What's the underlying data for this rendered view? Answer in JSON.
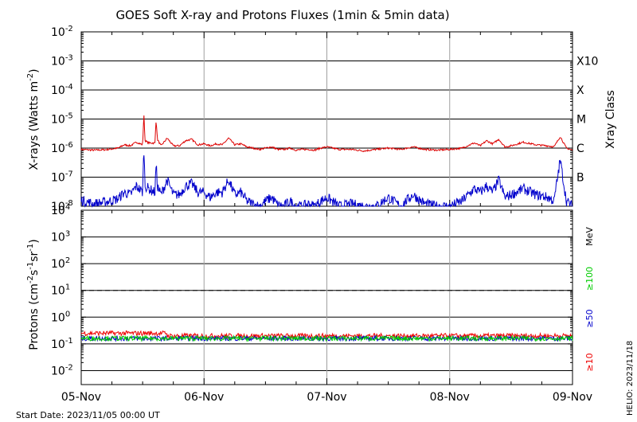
{
  "title": "GOES Soft X-ray and Protons Fluxes   (1min & 5min data)",
  "footer": {
    "start_date": "Start Date: 2023/11/05 00:00 UT",
    "helio": "HELIO: 2023/11/18"
  },
  "colors": {
    "long_xray": "#dd0000",
    "short_xray": "#0000cc",
    "p10": "#ee0000",
    "p50": "#0000cc",
    "p100": "#00cc00",
    "grid": "#000000",
    "day_lines": "#a0a0a0"
  },
  "chart_data": [
    {
      "type": "line",
      "name": "xray-panel",
      "ylabel": "X-rays (Watts m",
      "ylabel_sup": "-2",
      "ylabel_end": ")",
      "yscale": "log",
      "ylim": [
        1e-08,
        0.01
      ],
      "y_ticks": [
        {
          "base": "10",
          "exp": "-2"
        },
        {
          "base": "10",
          "exp": "-3"
        },
        {
          "base": "10",
          "exp": "-4"
        },
        {
          "base": "10",
          "exp": "-5"
        },
        {
          "base": "10",
          "exp": "-6"
        },
        {
          "base": "10",
          "exp": "-7"
        },
        {
          "base": "10",
          "exp": "-8"
        }
      ],
      "right_axis_label": "Xray Class",
      "classes": [
        "X10",
        "X",
        "M",
        "C",
        "B"
      ],
      "x_range_days": [
        "2023-11-05",
        "2023-11-09"
      ],
      "x_ticks": [
        "05-Nov",
        "06-Nov",
        "07-Nov",
        "08-Nov",
        "09-Nov"
      ],
      "series": [
        {
          "key": "long_xray",
          "x_days": [
            0,
            0.1,
            0.2,
            0.3,
            0.35,
            0.4,
            0.45,
            0.5,
            0.51,
            0.52,
            0.55,
            0.6,
            0.61,
            0.62,
            0.65,
            0.7,
            0.75,
            0.8,
            0.85,
            0.9,
            0.95,
            1.0,
            1.05,
            1.1,
            1.15,
            1.2,
            1.25,
            1.3,
            1.35,
            1.4,
            1.45,
            1.5,
            1.55,
            1.6,
            1.65,
            1.7,
            1.75,
            1.8,
            1.85,
            1.9,
            1.95,
            2.0,
            2.1,
            2.2,
            2.3,
            2.4,
            2.5,
            2.6,
            2.7,
            2.8,
            2.9,
            3.0,
            3.1,
            3.2,
            3.25,
            3.3,
            3.35,
            3.4,
            3.45,
            3.5,
            3.6,
            3.7,
            3.8,
            3.85,
            3.9,
            3.95,
            4.0
          ],
          "y_values": [
            9e-07,
            8.5e-07,
            8.8e-07,
            1e-06,
            1.3e-06,
            1.2e-06,
            1.6e-06,
            1.3e-06,
            1.6e-05,
            1.8e-06,
            1.5e-06,
            1.5e-06,
            1e-05,
            2e-06,
            1.2e-06,
            2.2e-06,
            1.2e-06,
            1.2e-06,
            1.8e-06,
            2e-06,
            1.3e-06,
            1.4e-06,
            1.2e-06,
            1.4e-06,
            1.3e-06,
            2.2e-06,
            1.3e-06,
            1.4e-06,
            1.1e-06,
            1e-06,
            9e-07,
            1e-06,
            1.1e-06,
            9e-07,
            9e-07,
            1e-06,
            8.5e-07,
            9e-07,
            9e-07,
            8.5e-07,
            1e-06,
            1.1e-06,
            9e-07,
            9e-07,
            8e-07,
            9e-07,
            1e-06,
            9e-07,
            1.1e-06,
            9e-07,
            8.5e-07,
            9e-07,
            1e-06,
            1.5e-06,
            1.2e-06,
            1.8e-06,
            1.4e-06,
            2e-06,
            1.1e-06,
            1.2e-06,
            1.6e-06,
            1.3e-06,
            1.2e-06,
            1.1e-06,
            2.5e-06,
            1e-06,
            8.5e-07
          ]
        },
        {
          "key": "short_xray",
          "x_days": [
            0,
            0.1,
            0.2,
            0.3,
            0.35,
            0.4,
            0.45,
            0.5,
            0.51,
            0.52,
            0.55,
            0.6,
            0.61,
            0.62,
            0.65,
            0.7,
            0.75,
            0.8,
            0.85,
            0.9,
            0.95,
            1.0,
            1.05,
            1.1,
            1.15,
            1.2,
            1.25,
            1.3,
            1.35,
            1.4,
            1.45,
            1.5,
            1.55,
            1.6,
            1.65,
            1.7,
            1.75,
            1.8,
            1.85,
            1.9,
            1.95,
            2.0,
            2.1,
            2.2,
            2.3,
            2.4,
            2.5,
            2.6,
            2.7,
            2.8,
            2.9,
            3.0,
            3.1,
            3.2,
            3.25,
            3.3,
            3.35,
            3.4,
            3.45,
            3.5,
            3.6,
            3.7,
            3.8,
            3.85,
            3.9,
            3.95,
            4.0
          ],
          "y_values": [
            1.6e-08,
            1.2e-08,
            1.4e-08,
            1.8e-08,
            3e-08,
            2.5e-08,
            5e-08,
            3e-08,
            1.2e-06,
            5e-08,
            4e-08,
            3e-08,
            3e-07,
            5e-08,
            2.5e-08,
            8e-08,
            2.5e-08,
            2.5e-08,
            5e-08,
            6e-08,
            3e-08,
            3e-08,
            2e-08,
            3e-08,
            3e-08,
            8e-08,
            2.5e-08,
            3e-08,
            1.5e-08,
            1.2e-08,
            1e-08,
            1.5e-08,
            2e-08,
            1.1e-08,
            1e-08,
            1.5e-08,
            1e-08,
            1e-08,
            1.2e-08,
            1e-08,
            1.5e-08,
            2e-08,
            1e-08,
            1.2e-08,
            1e-08,
            1e-08,
            2e-08,
            1e-08,
            2.5e-08,
            1.2e-08,
            1e-08,
            1e-08,
            1.5e-08,
            4e-08,
            3e-08,
            5e-08,
            3e-08,
            8e-08,
            2e-08,
            2.5e-08,
            4e-08,
            2.5e-08,
            2e-08,
            1.5e-08,
            4e-07,
            1.5e-08,
            1e-08
          ]
        }
      ]
    },
    {
      "type": "line",
      "name": "proton-panel",
      "ylabel": "Protons (cm",
      "ylabel_sup1": "-2",
      "ylabel_mid1": "s",
      "ylabel_sup2": "-1",
      "ylabel_mid2": "sr",
      "ylabel_sup3": "-1",
      "ylabel_end": ")",
      "yscale": "log",
      "ylim": [
        0.003,
        10000.0
      ],
      "y_ticks": [
        {
          "base": "10",
          "exp": "4"
        },
        {
          "base": "10",
          "exp": "3"
        },
        {
          "base": "10",
          "exp": "2"
        },
        {
          "base": "10",
          "exp": "1"
        },
        {
          "base": "10",
          "exp": "0"
        },
        {
          "base": "10",
          "exp": "-1"
        },
        {
          "base": "10",
          "exp": "-2"
        }
      ],
      "threshold": 10,
      "right_labels": [
        "MeV",
        "≥100",
        "≥50",
        "≥10"
      ],
      "x_range_days": [
        "2023-11-05",
        "2023-11-09"
      ],
      "series": [
        {
          "key": "p10",
          "level": 0.2
        },
        {
          "key": "p50",
          "level": 0.16
        },
        {
          "key": "p100",
          "level": 0.16
        }
      ]
    }
  ]
}
